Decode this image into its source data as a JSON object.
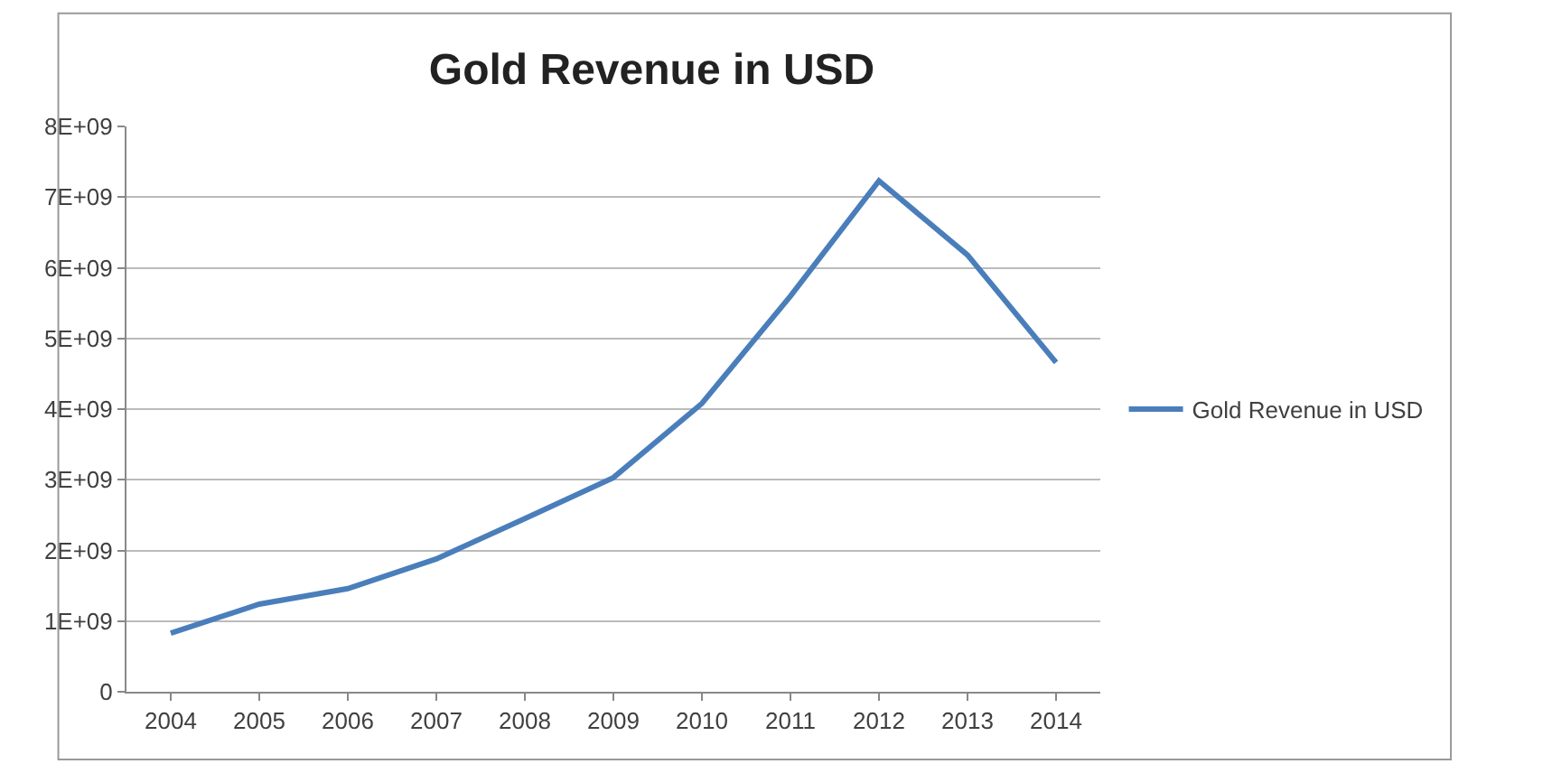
{
  "chart_data": {
    "type": "line",
    "title": "Gold Revenue in USD",
    "categories": [
      "2004",
      "2005",
      "2006",
      "2007",
      "2008",
      "2009",
      "2010",
      "2011",
      "2012",
      "2013",
      "2014"
    ],
    "series": [
      {
        "name": "Gold Revenue in USD",
        "color": "#4a7ebb",
        "values": [
          830000000,
          1240000000,
          1460000000,
          1880000000,
          2450000000,
          3030000000,
          4080000000,
          5600000000,
          7230000000,
          6180000000,
          4660000000
        ]
      }
    ],
    "ylim": [
      0,
      8000000000
    ],
    "yticks": [
      {
        "value": 0,
        "label": "0"
      },
      {
        "value": 1000000000,
        "label": "1E+09"
      },
      {
        "value": 2000000000,
        "label": "2E+09"
      },
      {
        "value": 3000000000,
        "label": "3E+09"
      },
      {
        "value": 4000000000,
        "label": "4E+09"
      },
      {
        "value": 5000000000,
        "label": "5E+09"
      },
      {
        "value": 6000000000,
        "label": "6E+09"
      },
      {
        "value": 7000000000,
        "label": "7E+09"
      },
      {
        "value": 8000000000,
        "label": "8E+09"
      }
    ],
    "grid": "y",
    "legend": "right",
    "marker": "none",
    "line_style": "solid"
  }
}
